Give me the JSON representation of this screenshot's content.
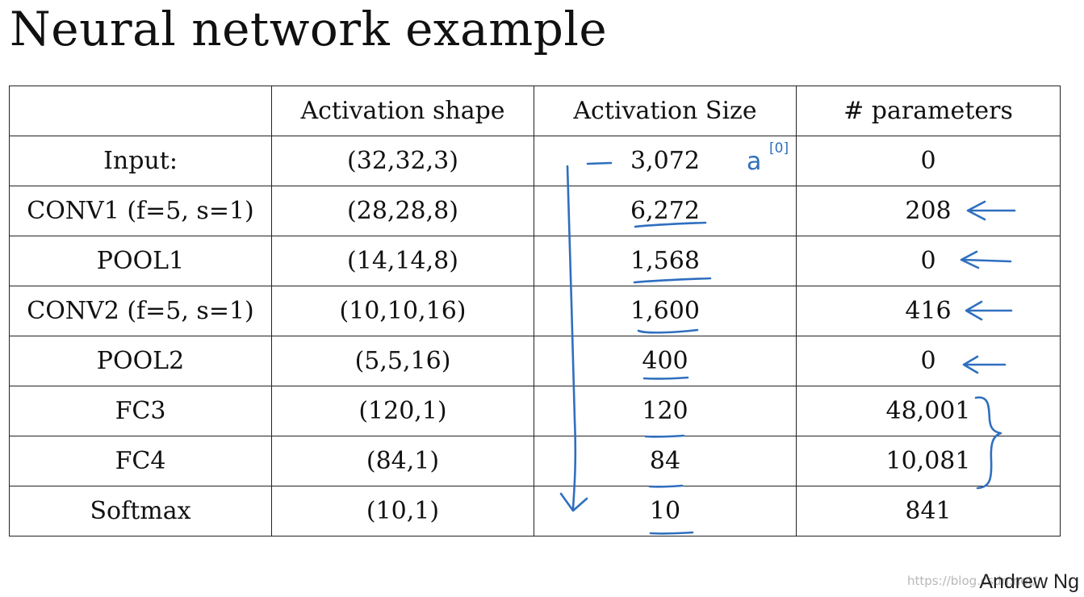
{
  "title": "Neural network example",
  "table": {
    "headers": [
      "",
      "Activation shape",
      "Activation Size",
      "# parameters"
    ],
    "rows": [
      {
        "layer": "Input:",
        "shape": "(32,32,3)",
        "size": "3,072",
        "params": "0"
      },
      {
        "layer": "CONV1 (f=5, s=1)",
        "shape": "(28,28,8)",
        "size": "6,272",
        "params": "208"
      },
      {
        "layer": "POOL1",
        "shape": "(14,14,8)",
        "size": "1,568",
        "params": "0"
      },
      {
        "layer": "CONV2  (f=5, s=1)",
        "shape": "(10,10,16)",
        "size": "1,600",
        "params": "416"
      },
      {
        "layer": "POOL2",
        "shape": "(5,5,16)",
        "size": "400",
        "params": "0"
      },
      {
        "layer": "FC3",
        "shape": "(120,1)",
        "size": "120",
        "params": "48,001"
      },
      {
        "layer": "FC4",
        "shape": "(84,1)",
        "size": "84",
        "params": "10,081"
      },
      {
        "layer": "Softmax",
        "shape": "(10,1)",
        "size": "10",
        "params": "841"
      }
    ]
  },
  "annotation": {
    "input_label": "a",
    "input_superscript": "[0]",
    "ink_color": "#2f6fbf"
  },
  "author": "Andrew Ng",
  "watermark": "https://blog.csdn.net/"
}
